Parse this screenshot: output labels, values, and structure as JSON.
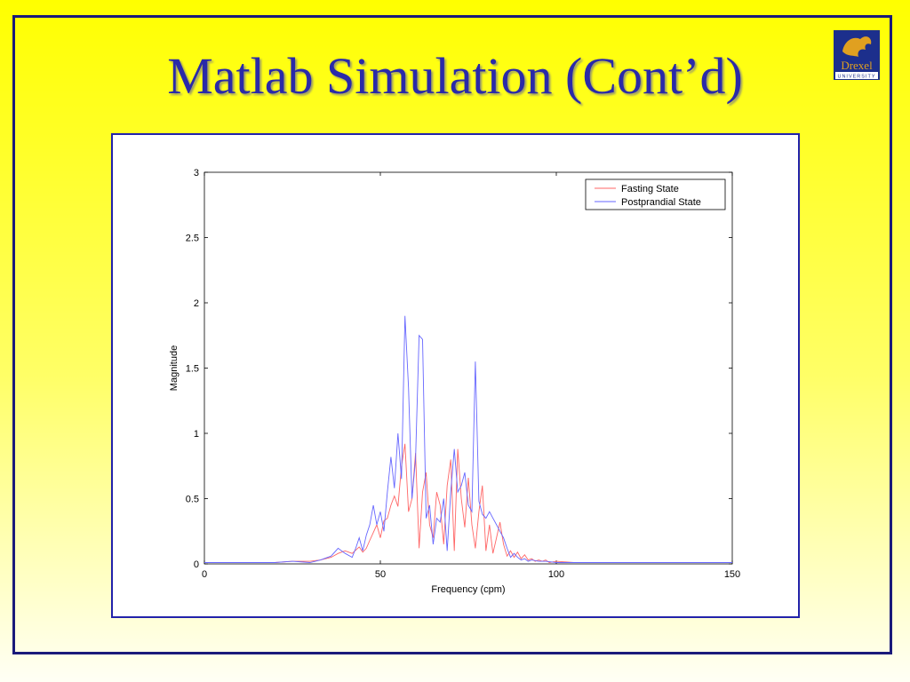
{
  "slide": {
    "title": "Matlab Simulation (Cont’d)",
    "logo_text": "Drexel",
    "logo_subtext": "UNIVERSITY"
  },
  "colors": {
    "background_top": "#ffff00",
    "background_bottom": "#fffff5",
    "title": "#2a2aa8",
    "frame": "#1a1a7a",
    "series_fasting": "#ff6666",
    "series_postprandial": "#6666ff"
  },
  "chart_data": {
    "type": "line",
    "title": "",
    "xlabel": "Frequency (cpm)",
    "ylabel": "Magnitude",
    "xlim": [
      0,
      150
    ],
    "ylim": [
      0,
      3
    ],
    "xticks": [
      "0",
      "50",
      "100",
      "150"
    ],
    "yticks": [
      "0",
      "0.5",
      "1",
      "1.5",
      "2",
      "2.5",
      "3"
    ],
    "grid": false,
    "legend_position": "top-right",
    "series": [
      {
        "name": "Fasting State",
        "color": "#ff6666",
        "x": [
          0,
          10,
          20,
          25,
          30,
          33,
          36,
          38,
          40,
          42,
          44,
          45,
          46,
          47,
          48,
          49,
          50,
          51,
          52,
          53,
          54,
          55,
          56,
          57,
          58,
          59,
          60,
          61,
          62,
          63,
          64,
          65,
          66,
          67,
          68,
          69,
          70,
          71,
          72,
          73,
          74,
          75,
          76,
          77,
          78,
          79,
          80,
          81,
          82,
          83,
          84,
          85,
          86,
          87,
          88,
          89,
          90,
          91,
          92,
          93,
          94,
          95,
          96,
          97,
          98,
          100,
          105,
          110,
          120,
          130,
          140,
          150
        ],
        "y": [
          0.01,
          0.01,
          0.01,
          0.02,
          0.02,
          0.03,
          0.05,
          0.08,
          0.1,
          0.08,
          0.13,
          0.09,
          0.12,
          0.18,
          0.24,
          0.3,
          0.2,
          0.33,
          0.35,
          0.45,
          0.52,
          0.44,
          0.75,
          0.92,
          0.4,
          0.5,
          0.85,
          0.12,
          0.55,
          0.7,
          0.3,
          0.2,
          0.55,
          0.45,
          0.15,
          0.6,
          0.8,
          0.1,
          0.88,
          0.5,
          0.28,
          0.66,
          0.3,
          0.12,
          0.4,
          0.6,
          0.1,
          0.3,
          0.08,
          0.2,
          0.32,
          0.15,
          0.06,
          0.1,
          0.05,
          0.09,
          0.04,
          0.07,
          0.03,
          0.04,
          0.02,
          0.03,
          0.02,
          0.03,
          0.01,
          0.02,
          0.01,
          0.01,
          0.01,
          0.01,
          0.01,
          0.01
        ]
      },
      {
        "name": "Postprandial State",
        "color": "#6666ff",
        "x": [
          0,
          10,
          20,
          25,
          30,
          33,
          36,
          38,
          40,
          42,
          43,
          44,
          45,
          46,
          47,
          48,
          49,
          50,
          51,
          52,
          53,
          54,
          55,
          56,
          57,
          58,
          59,
          60,
          61,
          62,
          63,
          64,
          65,
          66,
          67,
          68,
          69,
          70,
          71,
          72,
          73,
          74,
          75,
          76,
          77,
          78,
          79,
          80,
          81,
          82,
          83,
          84,
          85,
          86,
          87,
          88,
          89,
          90,
          91,
          92,
          93,
          95,
          97,
          100,
          105,
          110,
          120,
          130,
          140,
          150
        ],
        "y": [
          0.01,
          0.01,
          0.01,
          0.02,
          0.01,
          0.03,
          0.06,
          0.12,
          0.08,
          0.05,
          0.12,
          0.2,
          0.1,
          0.22,
          0.3,
          0.45,
          0.3,
          0.4,
          0.25,
          0.55,
          0.82,
          0.58,
          1.0,
          0.65,
          1.9,
          1.35,
          0.5,
          0.8,
          1.75,
          1.72,
          0.35,
          0.45,
          0.15,
          0.35,
          0.32,
          0.5,
          0.1,
          0.55,
          0.88,
          0.55,
          0.6,
          0.7,
          0.45,
          0.4,
          1.55,
          0.48,
          0.38,
          0.35,
          0.4,
          0.35,
          0.3,
          0.25,
          0.2,
          0.12,
          0.05,
          0.08,
          0.05,
          0.03,
          0.04,
          0.02,
          0.03,
          0.02,
          0.02,
          0.01,
          0.01,
          0.01,
          0.01,
          0.01,
          0.01,
          0.01
        ]
      }
    ]
  }
}
